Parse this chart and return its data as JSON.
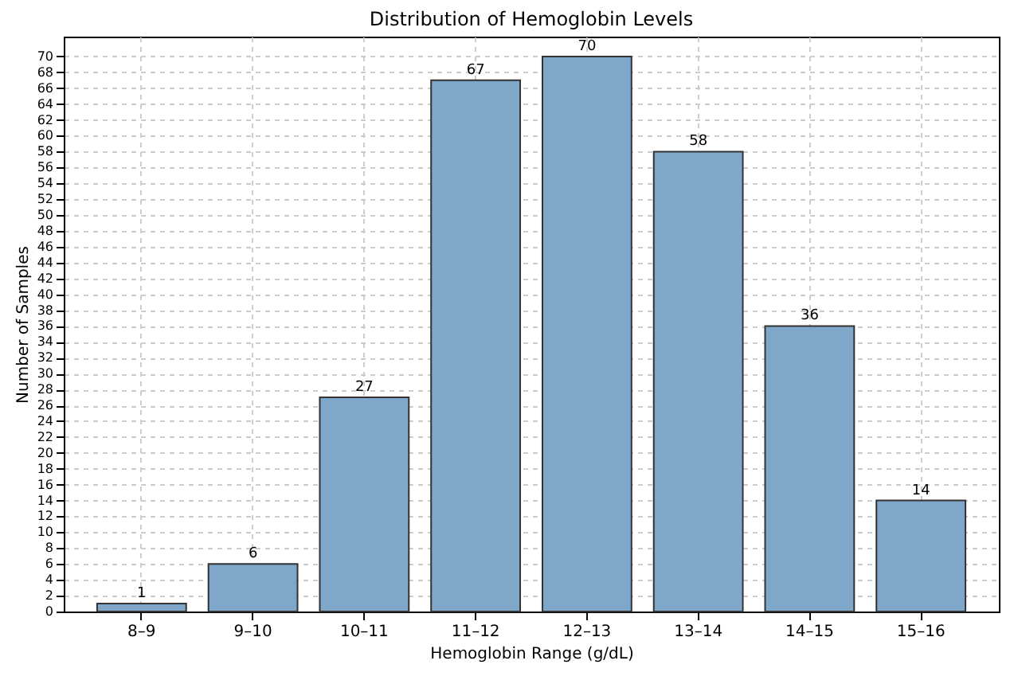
{
  "chart_data": {
    "type": "bar",
    "title": "Distribution of Hemoglobin Levels",
    "xlabel": "Hemoglobin Range (g/dL)",
    "ylabel": "Number of Samples",
    "categories": [
      "8–9",
      "9–10",
      "10–11",
      "11–12",
      "12–13",
      "13–14",
      "14–15",
      "15–16"
    ],
    "values": [
      1,
      6,
      27,
      67,
      70,
      58,
      36,
      14
    ],
    "color": "#7ea7ca",
    "data_labels": true,
    "ylim": [
      0,
      72.5
    ],
    "yticks": [
      0,
      2,
      4,
      6,
      8,
      10,
      12,
      14,
      16,
      18,
      20,
      22,
      24,
      26,
      28,
      30,
      32,
      34,
      36,
      38,
      40,
      42,
      44,
      46,
      48,
      50,
      52,
      54,
      56,
      58,
      60,
      62,
      64,
      66,
      68,
      70
    ],
    "grid": true
  }
}
